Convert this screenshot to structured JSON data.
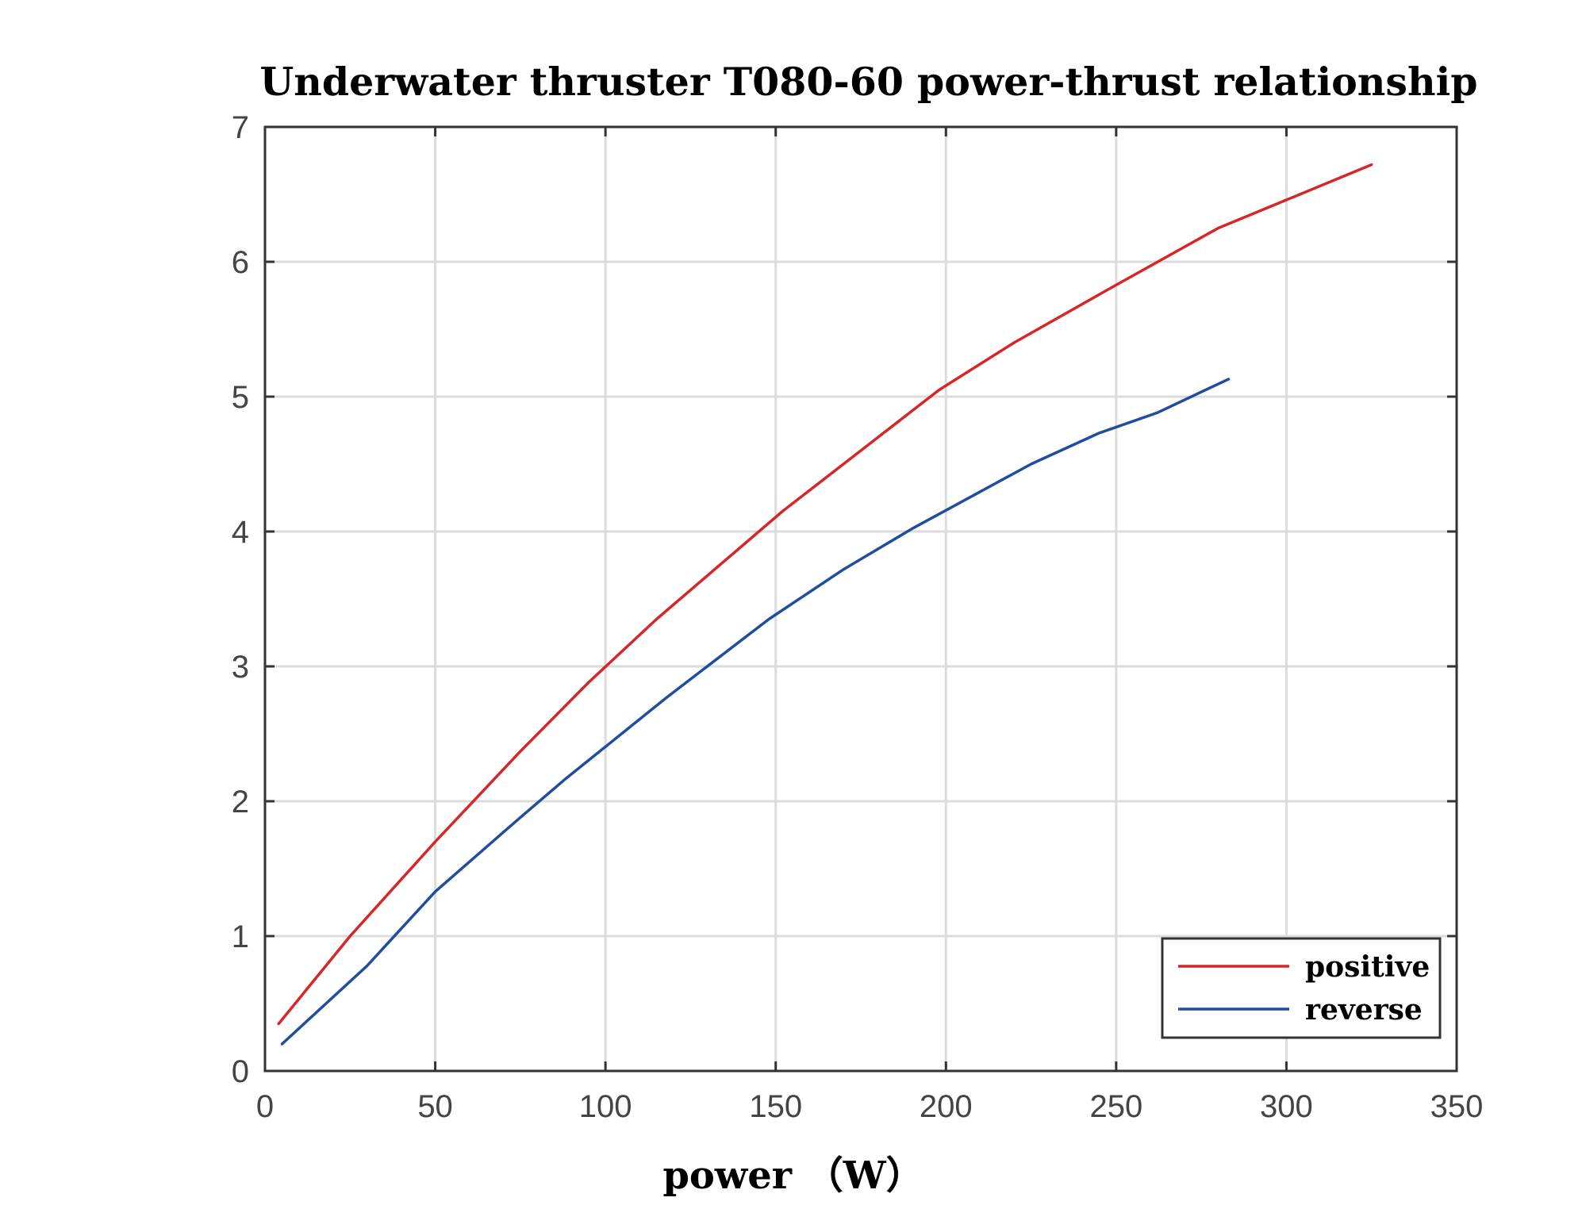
{
  "chart_data": {
    "type": "line",
    "title": "Underwater thruster T080-60 power-thrust relationship",
    "xlabel": "power  （W）",
    "ylabel": "",
    "xlim": [
      0,
      350
    ],
    "ylim": [
      0,
      7
    ],
    "x_ticks": [
      "0",
      "50",
      "100",
      "150",
      "200",
      "250",
      "300",
      "350"
    ],
    "y_ticks": [
      "0",
      "1",
      "2",
      "3",
      "4",
      "5",
      "6",
      "7"
    ],
    "grid": true,
    "legend": {
      "placement": "bottom-right"
    },
    "series": [
      {
        "name": "positive",
        "color": "#d62728",
        "points": [
          [
            4,
            0.35
          ],
          [
            25,
            1.0
          ],
          [
            50,
            1.7
          ],
          [
            75,
            2.37
          ],
          [
            95,
            2.88
          ],
          [
            115,
            3.35
          ],
          [
            152,
            4.15
          ],
          [
            175,
            4.6
          ],
          [
            198,
            5.05
          ],
          [
            220,
            5.4
          ],
          [
            248,
            5.8
          ],
          [
            280,
            6.25
          ],
          [
            325,
            6.72
          ]
        ]
      },
      {
        "name": "reverse",
        "color": "#1f4e9e",
        "points": [
          [
            5,
            0.2
          ],
          [
            30,
            0.78
          ],
          [
            50,
            1.33
          ],
          [
            75,
            1.88
          ],
          [
            88,
            2.16
          ],
          [
            118,
            2.77
          ],
          [
            148,
            3.35
          ],
          [
            170,
            3.72
          ],
          [
            190,
            4.02
          ],
          [
            225,
            4.5
          ],
          [
            245,
            4.73
          ],
          [
            262,
            4.88
          ],
          [
            283,
            5.13
          ]
        ]
      }
    ]
  }
}
